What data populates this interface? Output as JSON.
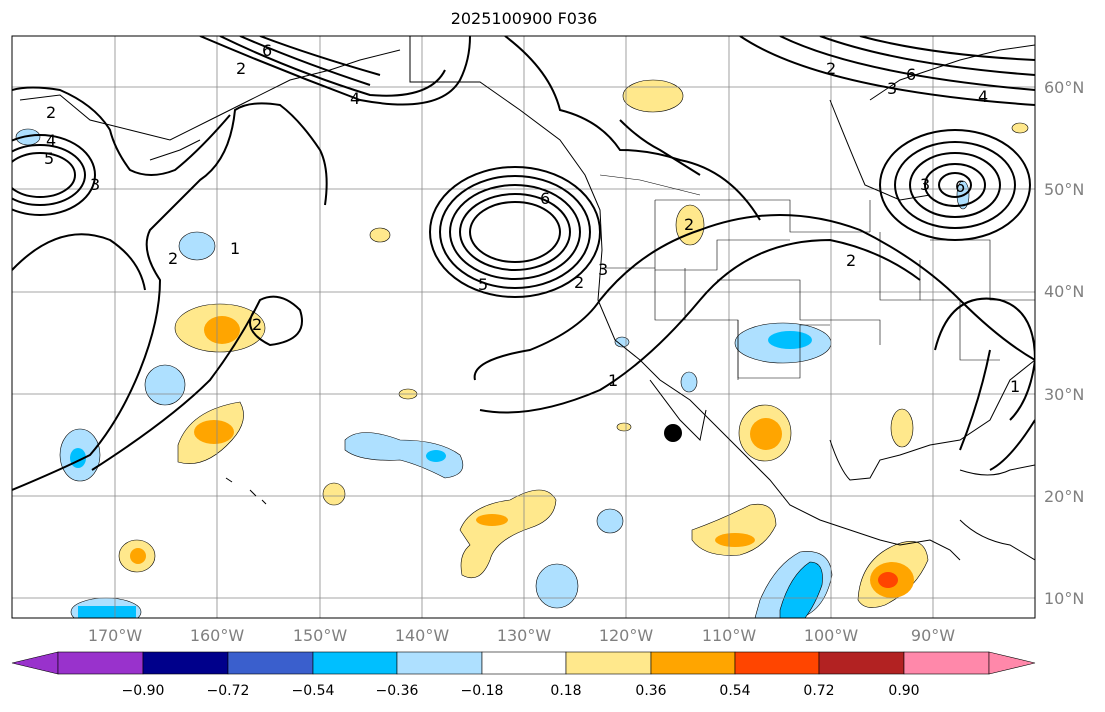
{
  "title": "2025100900 F036",
  "lat_labels": [
    "60°N",
    "50°N",
    "40°N",
    "30°N",
    "20°N",
    "10°N"
  ],
  "lon_labels": [
    "170°W",
    "160°W",
    "150°W",
    "140°W",
    "130°W",
    "120°W",
    "110°W",
    "100°W",
    "90°W"
  ],
  "contour_labels": [
    "6",
    "2",
    "4",
    "2",
    "4",
    "5",
    "3",
    "2",
    "1",
    "6",
    "5",
    "2",
    "3",
    "1",
    "2",
    "2",
    "2",
    "6",
    "4",
    "3",
    "6",
    "3",
    "2",
    "1"
  ],
  "colorbar": {
    "tick_labels": [
      "−0.90",
      "−0.72",
      "−0.54",
      "−0.36",
      "−0.18",
      "0.18",
      "0.36",
      "0.54",
      "0.72",
      "0.90"
    ],
    "colors": [
      "#9932cc",
      "#00008b",
      "#3a5fcd",
      "#00bfff",
      "#aee0ff",
      "#ffffff",
      "#ffe88c",
      "#ffa500",
      "#ff4500",
      "#b22222",
      "#ff88aa"
    ]
  },
  "marker": "storm-position-dot"
}
